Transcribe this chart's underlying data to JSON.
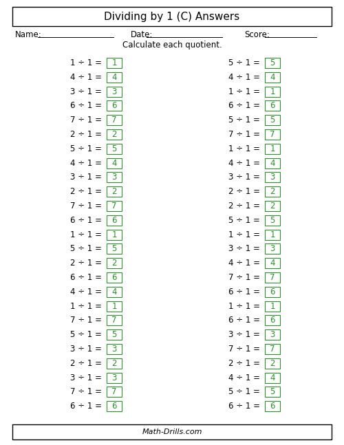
{
  "title": "Dividing by 1 (C) Answers",
  "name_label": "Name:",
  "date_label": "Date:",
  "score_label": "Score:",
  "instruction": "Calculate each quotient.",
  "footer": "Math-Drills.com",
  "left_column": [
    1,
    4,
    3,
    6,
    7,
    2,
    5,
    4,
    3,
    2,
    7,
    6,
    1,
    5,
    2,
    6,
    4,
    1,
    7,
    5,
    3,
    2,
    3,
    7,
    6
  ],
  "right_column": [
    5,
    4,
    1,
    6,
    5,
    7,
    1,
    4,
    3,
    2,
    2,
    5,
    1,
    3,
    4,
    7,
    6,
    1,
    6,
    3,
    7,
    2,
    4,
    5,
    6
  ],
  "answer_color": "#2e8b2e",
  "background_color": "#ffffff",
  "text_color": "#000000",
  "title_fontsize": 11,
  "body_fontsize": 8.5,
  "answer_fontsize": 8.5,
  "footer_fontsize": 8
}
